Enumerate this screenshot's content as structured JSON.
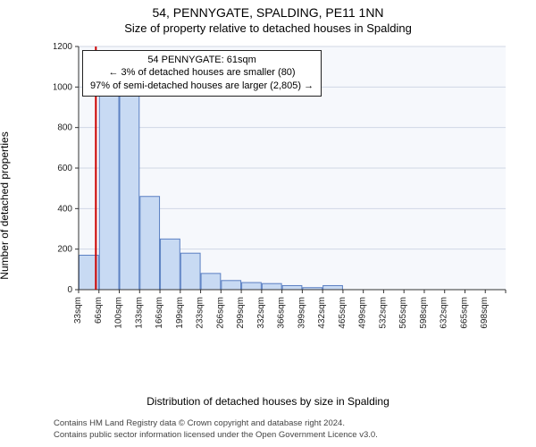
{
  "header": {
    "address": "54, PENNYGATE, SPALDING, PE11 1NN",
    "subtitle": "Size of property relative to detached houses in Spalding"
  },
  "axes": {
    "ylabel": "Number of detached properties",
    "xlabel": "Distribution of detached houses by size in Spalding",
    "ylim": [
      0,
      1200
    ],
    "ytick_step": 200,
    "label_fontsize": 12,
    "tick_fontsize": 10
  },
  "chart": {
    "type": "histogram",
    "background_color": "#f6f8fc",
    "grid_color": "#d0d7e5",
    "axis_color": "#333333",
    "bar_fill": "#c8daf3",
    "bar_stroke": "#5a7fc2",
    "bar_stroke_width": 1,
    "marker_line_color": "#cc0000",
    "marker_line_width": 2,
    "marker_x_value": 61,
    "bins": [
      {
        "label": "33sqm",
        "value": 170
      },
      {
        "label": "66sqm",
        "value": 960
      },
      {
        "label": "100sqm",
        "value": 980
      },
      {
        "label": "133sqm",
        "value": 460
      },
      {
        "label": "166sqm",
        "value": 250
      },
      {
        "label": "199sqm",
        "value": 180
      },
      {
        "label": "233sqm",
        "value": 80
      },
      {
        "label": "266sqm",
        "value": 45
      },
      {
        "label": "299sqm",
        "value": 35
      },
      {
        "label": "332sqm",
        "value": 30
      },
      {
        "label": "366sqm",
        "value": 20
      },
      {
        "label": "399sqm",
        "value": 10
      },
      {
        "label": "432sqm",
        "value": 20
      },
      {
        "label": "465sqm",
        "value": 0
      },
      {
        "label": "499sqm",
        "value": 0
      },
      {
        "label": "532sqm",
        "value": 0
      },
      {
        "label": "565sqm",
        "value": 0
      },
      {
        "label": "598sqm",
        "value": 0
      },
      {
        "label": "632sqm",
        "value": 0
      },
      {
        "label": "665sqm",
        "value": 0
      },
      {
        "label": "698sqm",
        "value": 0
      }
    ]
  },
  "annotation": {
    "line1": "54 PENNYGATE: 61sqm",
    "line2": "← 3% of detached houses are smaller (80)",
    "line3": "97% of semi-detached houses are larger (2,805) →"
  },
  "credits": {
    "line1": "Contains HM Land Registry data © Crown copyright and database right 2024.",
    "line2": "Contains public sector information licensed under the Open Government Licence v3.0."
  }
}
